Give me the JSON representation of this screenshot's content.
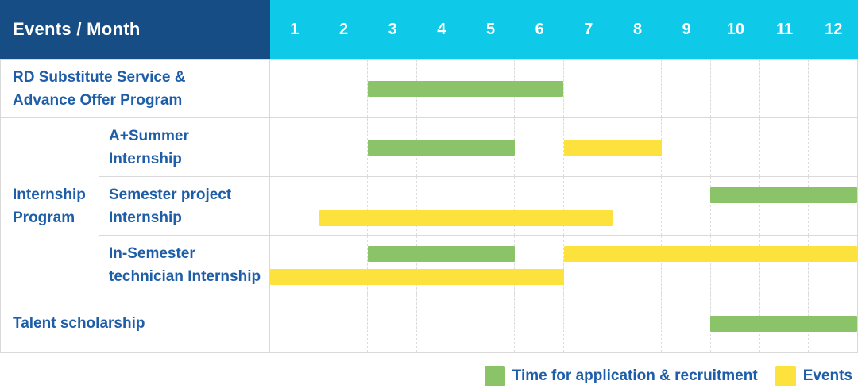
{
  "chart_data": {
    "type": "table",
    "subtype": "gantt-schedule",
    "corner_header": "Events / Month",
    "x_axis": {
      "label": "Month",
      "ticks": [
        "1",
        "2",
        "3",
        "4",
        "5",
        "6",
        "7",
        "8",
        "9",
        "10",
        "11",
        "12"
      ],
      "range": [
        1,
        12
      ]
    },
    "legend": [
      {
        "key": "application",
        "label": "Time for application & recruitment",
        "color": "#8BC368"
      },
      {
        "key": "events",
        "label": "Events",
        "color": "#FDE23E"
      }
    ],
    "rows": [
      {
        "label": "RD Substitute Service & Advance Offer Program",
        "label_lines": [
          "RD Substitute Service &",
          "Advance Offer Program"
        ],
        "group": "",
        "bars": [
          {
            "series": "application",
            "start_month": 3,
            "end_month": 6,
            "lane": "center"
          }
        ]
      },
      {
        "label": "A+Summer Internship",
        "label_lines": [
          "A+Summer",
          "Internship"
        ],
        "group": "Internship Program",
        "bars": [
          {
            "series": "application",
            "start_month": 3,
            "end_month": 5,
            "lane": "center"
          },
          {
            "series": "events",
            "start_month": 7,
            "end_month": 8,
            "lane": "center"
          }
        ]
      },
      {
        "label": "Semester project Internship",
        "label_lines": [
          "Semester project",
          "Internship"
        ],
        "group": "Internship Program",
        "bars": [
          {
            "series": "application",
            "start_month": 10,
            "end_month": 12,
            "lane": "top"
          },
          {
            "series": "events",
            "start_month": 2,
            "end_month": 7,
            "lane": "bottom"
          }
        ]
      },
      {
        "label": "In-Semester technician Internship",
        "label_lines": [
          "In-Semester",
          "technician Internship"
        ],
        "group": "Internship Program",
        "bars": [
          {
            "series": "application",
            "start_month": 3,
            "end_month": 5,
            "lane": "top"
          },
          {
            "series": "events",
            "start_month": 7,
            "end_month": 12,
            "lane": "top"
          },
          {
            "series": "events",
            "start_month": 1,
            "end_month": 6,
            "lane": "bottom"
          }
        ]
      },
      {
        "label": "Talent scholarship",
        "label_lines": [
          "Talent scholarship"
        ],
        "group": "",
        "bars": [
          {
            "series": "application",
            "start_month": 10,
            "end_month": 12,
            "lane": "center"
          }
        ]
      }
    ],
    "group_label_lines": {
      "Internship Program": [
        "Internship",
        "Program"
      ]
    }
  },
  "colors": {
    "header_navy": "#164D84",
    "header_cyan": "#0FC9E8",
    "bar_green": "#8BC368",
    "bar_yellow": "#FDE23E",
    "label_blue": "#1E5EA8",
    "grid_line": "#D9D9D9"
  }
}
